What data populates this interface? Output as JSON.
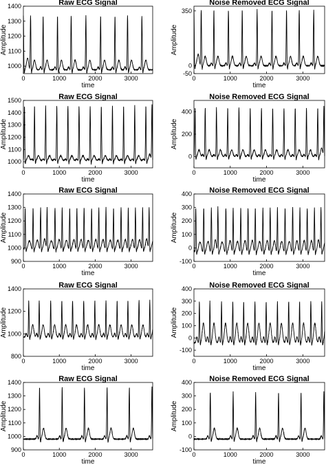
{
  "chart_data": [
    {
      "type": "line",
      "title": "Raw ECG Signal",
      "xlabel": "time",
      "ylabel": "Amplitude",
      "xlim": [
        0,
        3600
      ],
      "ylim": [
        950,
        1400
      ],
      "xticks": [
        0,
        1000,
        2000,
        3000
      ],
      "yticks": [
        1000,
        1100,
        1200,
        1300,
        1400
      ],
      "baseline": 975,
      "peak": 1340,
      "t_wave": 1040,
      "beats": [
        0,
        200,
        550,
        950,
        1330,
        1740,
        2150,
        2550,
        2900,
        3300
      ]
    },
    {
      "type": "line",
      "title": "Noise Removed ECG Signal",
      "xlabel": "time",
      "ylabel": "Amplitude",
      "xlim": [
        0,
        3600
      ],
      "ylim": [
        -50,
        380
      ],
      "xticks": [
        0,
        1000,
        2000,
        3000
      ],
      "yticks": [
        -50,
        0,
        350
      ],
      "baseline": 0,
      "peak": 360,
      "t_wave": 60,
      "beats": [
        0,
        200,
        550,
        950,
        1330,
        1740,
        2150,
        2550,
        2900,
        3300
      ]
    },
    {
      "type": "line",
      "title": "Raw ECG Signal",
      "xlabel": "time",
      "ylabel": "Amplitude",
      "xlim": [
        0,
        3600
      ],
      "ylim": [
        950,
        1500
      ],
      "xticks": [
        0,
        1000,
        2000,
        3000
      ],
      "yticks": [
        1000,
        1100,
        1200,
        1300,
        1400,
        1500
      ],
      "baseline": 1010,
      "peak": 1460,
      "t_wave": 1050,
      "beats": [
        30,
        310,
        620,
        930,
        1240,
        1550,
        1860,
        2170,
        2480,
        2790,
        3100,
        3410,
        3580
      ]
    },
    {
      "type": "line",
      "title": "Noise Removed ECG Signal",
      "xlabel": "time",
      "ylabel": "Amplitude",
      "xlim": [
        0,
        3600
      ],
      "ylim": [
        -100,
        500
      ],
      "xticks": [
        0,
        1000,
        2000,
        3000
      ],
      "yticks": [
        0,
        200,
        400
      ],
      "baseline": 0,
      "peak": 440,
      "t_wave": 60,
      "beats": [
        30,
        310,
        620,
        930,
        1240,
        1550,
        1860,
        2170,
        2480,
        2790,
        3100,
        3410,
        3580
      ]
    },
    {
      "type": "line",
      "title": "Raw ECG Signal",
      "xlabel": "time",
      "ylabel": "Amplitude",
      "xlim": [
        0,
        3600
      ],
      "ylim": [
        900,
        1400
      ],
      "xticks": [
        0,
        1000,
        2000,
        3000
      ],
      "yticks": [
        900,
        1000,
        1100,
        1200,
        1300,
        1400
      ],
      "baseline": 990,
      "peak": 1300,
      "t_wave": 1050,
      "beats": [
        50,
        270,
        480,
        660,
        880,
        1080,
        1290,
        1490,
        1690,
        1900,
        2100,
        2300,
        2510,
        2720,
        2920,
        3120,
        3320,
        3500
      ]
    },
    {
      "type": "line",
      "title": "Noise Removed ECG Signal",
      "xlabel": "time",
      "ylabel": "Amplitude",
      "xlim": [
        0,
        3600
      ],
      "ylim": [
        -100,
        400
      ],
      "xticks": [
        0,
        1000,
        2000,
        3000
      ],
      "yticks": [
        -100,
        0,
        100,
        200,
        300,
        400
      ],
      "baseline": -30,
      "peak": 300,
      "t_wave": 40,
      "beats": [
        50,
        270,
        480,
        660,
        880,
        1080,
        1290,
        1490,
        1690,
        1900,
        2100,
        2300,
        2510,
        2720,
        2920,
        3120,
        3320,
        3500
      ]
    },
    {
      "type": "line",
      "title": "Raw ECG Signal",
      "xlabel": "time",
      "ylabel": "Amplitude",
      "xlim": [
        0,
        3600
      ],
      "ylim": [
        800,
        1400
      ],
      "xticks": [
        0,
        1000,
        2000,
        3000
      ],
      "yticks": [
        800,
        1000,
        1200,
        1400
      ],
      "baseline": 970,
      "peak": 1300,
      "t_wave": 1080,
      "beats": [
        150,
        440,
        760,
        1070,
        1370,
        1680,
        1990,
        2300,
        2610,
        2910,
        3220,
        3520
      ]
    },
    {
      "type": "line",
      "title": "Noise Removed ECG Signal",
      "xlabel": "time",
      "ylabel": "Amplitude",
      "xlim": [
        0,
        3600
      ],
      "ylim": [
        -150,
        400
      ],
      "xticks": [
        0,
        1000,
        2000,
        3000
      ],
      "yticks": [
        -100,
        0,
        100,
        200,
        300,
        400
      ],
      "baseline": -40,
      "peak": 300,
      "t_wave": 120,
      "beats": [
        150,
        440,
        760,
        1070,
        1370,
        1680,
        1990,
        2300,
        2610,
        2910,
        3220,
        3520
      ]
    },
    {
      "type": "line",
      "title": "Raw ECG Signal",
      "xlabel": "time",
      "ylabel": "Amplitude",
      "xlim": [
        0,
        3600
      ],
      "ylim": [
        900,
        1400
      ],
      "xticks": [
        0,
        1000,
        2000,
        3000
      ],
      "yticks": [
        900,
        1000,
        1100,
        1200,
        1300,
        1400
      ],
      "baseline": 980,
      "peak": 1370,
      "t_wave": 1060,
      "beats": [
        450,
        1080,
        1700,
        2330,
        2950,
        3580
      ]
    },
    {
      "type": "line",
      "title": "Noise Removed ECG Signal",
      "xlabel": "time",
      "ylabel": "Amplitude",
      "xlim": [
        0,
        3600
      ],
      "ylim": [
        -100,
        400
      ],
      "xticks": [
        0,
        1000,
        2000,
        3000
      ],
      "yticks": [
        -100,
        0,
        100,
        200,
        300,
        400
      ],
      "baseline": -20,
      "peak": 330,
      "t_wave": 60,
      "beats": [
        450,
        1080,
        1700,
        2330,
        2950,
        3580
      ]
    }
  ]
}
